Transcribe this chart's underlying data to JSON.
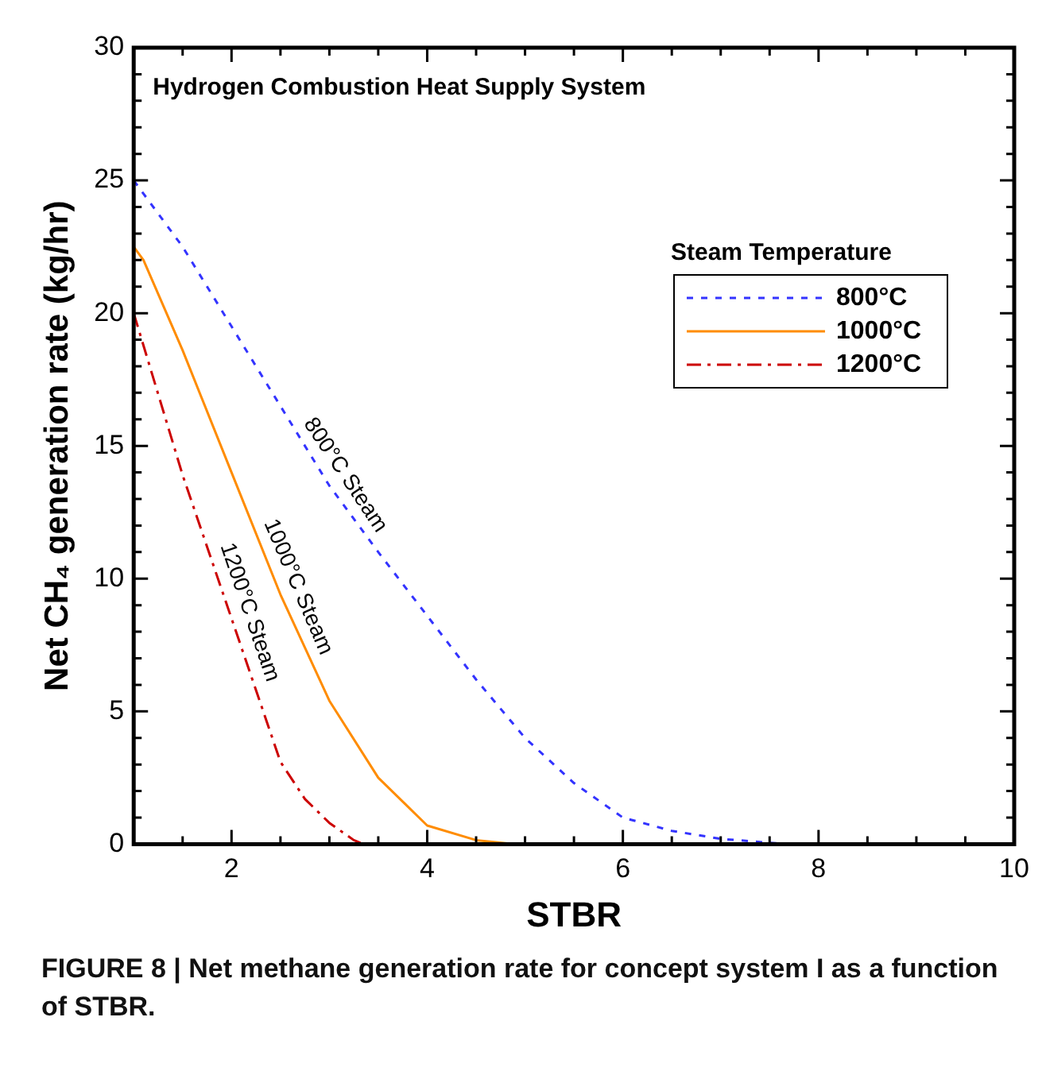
{
  "chart_data": {
    "type": "line",
    "title": "Hydrogen Combustion Heat Supply System",
    "xlabel": "STBR",
    "ylabel": "Net CH₄ generation rate (kg/hr)",
    "legend_title": "Steam Temperature",
    "legend": "top right",
    "marker": "none",
    "xlim": [
      1,
      10
    ],
    "ylim": [
      0,
      30
    ],
    "xticks": [
      {
        "value": 1.5,
        "label": null
      },
      2,
      {
        "value": 2.5,
        "label": null
      },
      {
        "value": 3,
        "label": null
      },
      {
        "value": 3.5,
        "label": null
      },
      4,
      {
        "value": 4.5,
        "label": null
      },
      {
        "value": 5,
        "label": null
      },
      {
        "value": 5.5,
        "label": null
      },
      6,
      {
        "value": 6.5,
        "label": null
      },
      {
        "value": 7,
        "label": null
      },
      {
        "value": 7.5,
        "label": null
      },
      8,
      {
        "value": 8.5,
        "label": null
      },
      {
        "value": 9,
        "label": null
      },
      {
        "value": 9.5,
        "label": null
      },
      10
    ],
    "yticks": [
      0,
      {
        "value": 1,
        "label": null
      },
      {
        "value": 2,
        "label": null
      },
      {
        "value": 3,
        "label": null
      },
      {
        "value": 4,
        "label": null
      },
      5,
      {
        "value": 6,
        "label": null
      },
      {
        "value": 7,
        "label": null
      },
      {
        "value": 8,
        "label": null
      },
      {
        "value": 9,
        "label": null
      },
      10,
      {
        "value": 11,
        "label": null
      },
      {
        "value": 12,
        "label": null
      },
      {
        "value": 13,
        "label": null
      },
      {
        "value": 14,
        "label": null
      },
      15,
      {
        "value": 16,
        "label": null
      },
      {
        "value": 17,
        "label": null
      },
      {
        "value": 18,
        "label": null
      },
      {
        "value": 19,
        "label": null
      },
      20,
      {
        "value": 21,
        "label": null
      },
      {
        "value": 22,
        "label": null
      },
      {
        "value": 23,
        "label": null
      },
      {
        "value": 24,
        "label": null
      },
      25,
      {
        "value": 26,
        "label": null
      },
      {
        "value": 27,
        "label": null
      },
      {
        "value": 28,
        "label": null
      },
      {
        "value": 29,
        "label": null
      },
      30
    ],
    "series": [
      {
        "name": "800°C",
        "color": "#3333ff",
        "line_style": "dashed",
        "x": [
          1,
          1.5,
          2,
          2.5,
          3,
          3.5,
          4,
          4.5,
          5,
          5.5,
          6,
          6.5,
          7,
          7.5,
          7.7
        ],
        "values": [
          25,
          22.5,
          19.5,
          16.5,
          13.5,
          11,
          8.6,
          6.2,
          4,
          2.3,
          1,
          0.5,
          0.2,
          0.05,
          0
        ]
      },
      {
        "name": "1000°C",
        "color": "#ff8c00",
        "line_style": "solid",
        "x": [
          1,
          1.1,
          1.5,
          2,
          2.5,
          3,
          3.5,
          4,
          4.5,
          4.9
        ],
        "values": [
          22.5,
          22,
          18.6,
          14,
          9.4,
          5.4,
          2.5,
          0.7,
          0.15,
          0
        ]
      },
      {
        "name": "1200°C",
        "color": "#cc0000",
        "line_style": "dashdot",
        "x": [
          1,
          1.5,
          2,
          2.5,
          2.75,
          3,
          3.25,
          3.35
        ],
        "values": [
          20,
          13.9,
          8.5,
          3.1,
          1.7,
          0.8,
          0.15,
          0
        ]
      }
    ],
    "annotations": [
      {
        "text": "800°C Steam",
        "x": 3,
        "y": 13.5
      },
      {
        "text": "1000°C Steam",
        "x": 2.5,
        "y": 9.4
      },
      {
        "text": "1200°C Steam",
        "x": 2,
        "y": 8.5
      },
      "FIGURE 8 | Net methane generation rate for concept system I as a function of STBR."
    ]
  }
}
